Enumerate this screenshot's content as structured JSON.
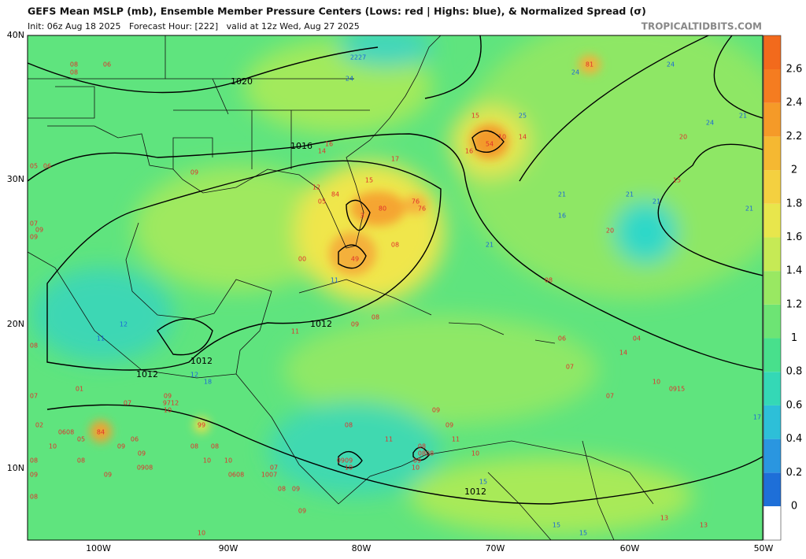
{
  "header": {
    "title": "GEFS Mean MSLP (mb), Ensemble Member Pressure Centers (Lows: red | Highs: blue), & Normalized Spread (σ)",
    "subtitle": "Init: 06z Aug 18 2025   Forecast Hour: [222]   valid at 12z Wed, Aug 27 2025",
    "site": "TROPICALTIDBITS.COM"
  },
  "map": {
    "lat_labels": [
      "40N",
      "30N",
      "20N",
      "10N"
    ],
    "lon_labels": [
      "100W",
      "90W",
      "80W",
      "70W",
      "60W",
      "50W"
    ],
    "isobar_labels": [
      "1020",
      "1016",
      "1012",
      "1012",
      "1012",
      "1012"
    ],
    "lows": [
      "08",
      "08",
      "06",
      "05",
      "06",
      "09",
      "07",
      "09",
      "09",
      "16",
      "14",
      "17",
      "15",
      "12",
      "84",
      "05",
      "80",
      "76",
      "76",
      "3",
      "00",
      "49",
      "08",
      "15",
      "54",
      "16",
      "10",
      "14",
      "81",
      "20",
      "15",
      "20",
      "08",
      "09",
      "08",
      "11",
      "06",
      "07",
      "04",
      "14",
      "10",
      "0915",
      "07",
      "08",
      "01",
      "07",
      "07",
      "09",
      "9712",
      "10",
      "02",
      "0608",
      "84",
      "05",
      "06",
      "10",
      "09",
      "09",
      "99",
      "08",
      "08",
      "10",
      "10",
      "08",
      "09",
      "08",
      "09",
      "0908",
      "0608",
      "1007",
      "07",
      "08",
      "09",
      "08",
      "09",
      "10",
      "08",
      "11",
      "09",
      "09",
      "11",
      "0909",
      "10",
      "08",
      "0808",
      "09",
      "10",
      "10",
      "13",
      "13"
    ],
    "highs": [
      "24",
      "2227",
      "24",
      "24",
      "25",
      "24",
      "21",
      "21",
      "21",
      "21",
      "16",
      "21",
      "21",
      "11",
      "12",
      "12",
      "18",
      "17",
      "15",
      "15",
      "15",
      "11"
    ]
  },
  "colorbar": {
    "ticks": [
      0,
      0.2,
      0.4,
      0.6,
      0.8,
      1,
      1.2,
      1.4,
      1.6,
      1.8,
      2,
      2.2,
      2.4,
      2.6
    ]
  }
}
